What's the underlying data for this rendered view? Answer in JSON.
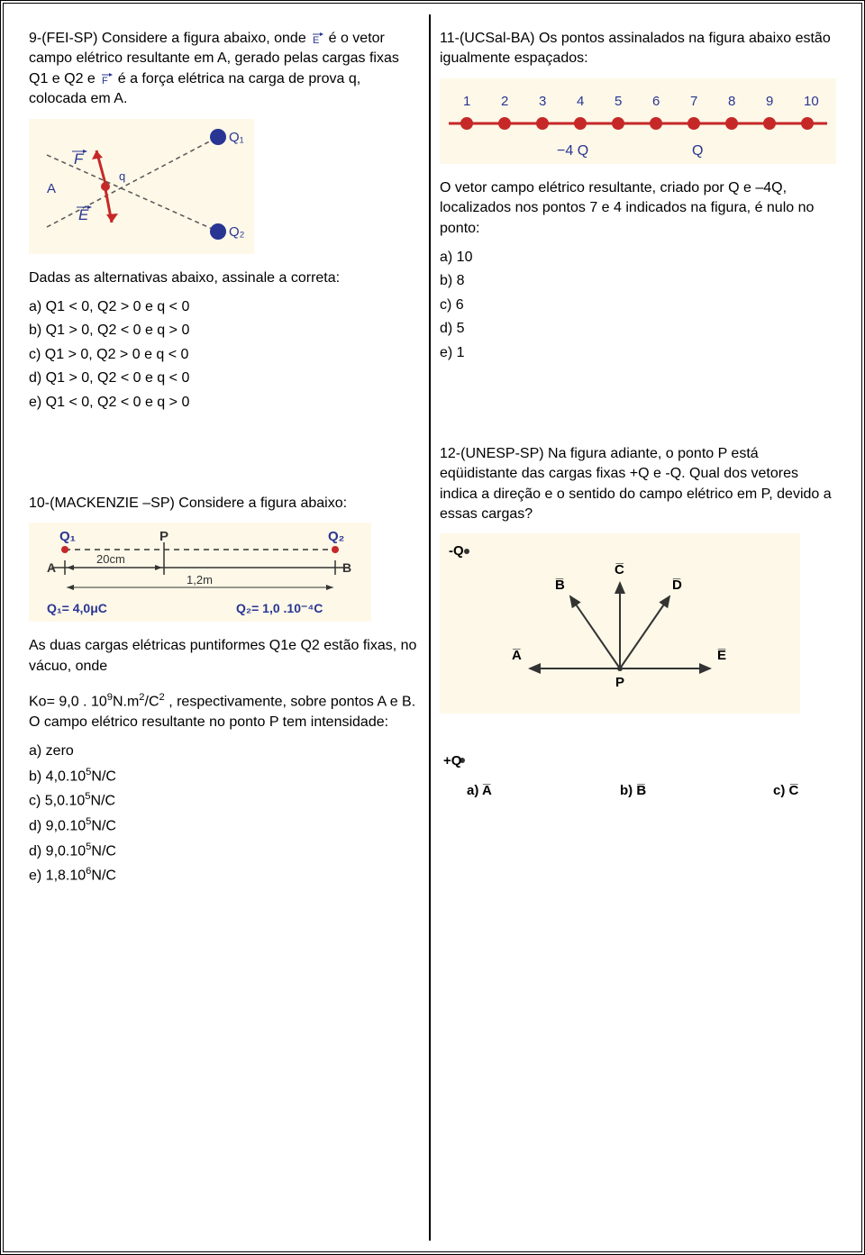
{
  "q9": {
    "text_before_E": "9-(FEI-SP) Considere a figura abaixo, onde ",
    "text_mid": " é o vetor campo elétrico resultante em A, gerado pelas cargas fixas Q1  e Q2 e ",
    "text_after_F": " é a força elétrica na carga de prova q, colocada em A.",
    "prompt": "Dadas as alternativas abaixo, assinale a correta:",
    "opts": {
      "a": "a) Q1 < 0, Q2 > 0 e q < 0",
      "b": "b) Q1 > 0, Q2 < 0 e q > 0",
      "c": "c) Q1 > 0, Q2 > 0 e q < 0",
      "d": "d) Q1 > 0, Q2 < 0 e q < 0",
      "e": "e) Q1 < 0, Q2 < 0 e q > 0"
    },
    "fig": {
      "bg": "#fdf8e8",
      "line_color": "#555",
      "vector_color": "#c62828",
      "charge_color": "#283593",
      "labels": {
        "A": "A",
        "q": "q",
        "Q1": "Q₁",
        "Q2": "Q₂",
        "F": "F",
        "E": "E"
      }
    }
  },
  "q10": {
    "text": "10-(MACKENZIE –SP) Considere a figura abaixo:",
    "text2_a": "As duas cargas elétricas puntiformes Q1e Q2 estão fixas, no vácuo, onde",
    "text2_b_pre": "Ko= 9,0 . 10",
    "text2_b_sup": "9",
    "text2_b_mid": "N.m",
    "text2_b_sup2": "2",
    "text2_b_mid2": "/C",
    "text2_b_sup3": "2",
    "text2_b_post": " , respectivamente, sobre pontos A e B. O campo elétrico resultante no ponto P tem intensidade:",
    "opts": {
      "a": " a) zero",
      "b": "b) 4,0.10",
      "b_sup": "5",
      "b_post": "N/C",
      "c": "c) 5,0.10",
      "c_sup": "5",
      "c_post": "N/C",
      "d": "d) 9,0.10",
      "d_sup": "5",
      "d_post": "N/C",
      "d2": "d) 9,0.10",
      "d2_sup": "5",
      "d2_post": "N/C",
      "e": "e) 1,8.10",
      "e_sup": "6",
      "e_post": "N/C"
    },
    "fig": {
      "bg": "#fdf8e8",
      "line_color": "#333",
      "label_color": "#283593",
      "charge_color": "#c62828",
      "labels": {
        "Q1": "Q₁",
        "Q2": "Q₂",
        "P": "P",
        "A": "A",
        "B": "B",
        "d1": "20cm",
        "d2": "1,2m",
        "v1": "Q₁= 4,0μC",
        "v2": "Q₂= 1,0 .10⁻⁴C"
      }
    }
  },
  "q11": {
    "text": "11-(UCSal-BA) Os pontos assinalados na figura abaixo estão igualmente espaçados:",
    "text2": "O vetor campo elétrico resultante, criado por Q e –4Q, localizados nos pontos 7 e 4 indicados na figura, é nulo no ponto:",
    "opts": {
      "a": "a) 10",
      "b": "b) 8",
      "c": "c) 6",
      "d": "d) 5",
      "e": "e) 1"
    },
    "fig": {
      "bg": "#fdf8e8",
      "line_color": "#c62828",
      "num_color": "#283593",
      "nums": [
        "1",
        "2",
        "3",
        "4",
        "5",
        "6",
        "7",
        "8",
        "9",
        "10"
      ],
      "lbl_neg": "−4 Q",
      "lbl_pos": "Q"
    }
  },
  "q12": {
    "text": "12-(UNESP-SP) Na figura adiante, o ponto P está eqüidistante das cargas fixas +Q e -Q. Qual dos vetores indica a direção e o sentido do campo elétrico em P, devido a essas cargas?",
    "fig": {
      "bg": "#fdf8e8",
      "line_color": "#333",
      "labels": {
        "negQ": "-Q",
        "posQ": "+Q",
        "P": "P",
        "A": "A",
        "B": "B",
        "C": "C",
        "D": "D",
        "E": "E"
      }
    },
    "ans": {
      "a_pre": "a) ",
      "a_sym": "A",
      "b_pre": "b) ",
      "b_sym": "B",
      "c_pre": "c) ",
      "c_sym": "C"
    }
  }
}
